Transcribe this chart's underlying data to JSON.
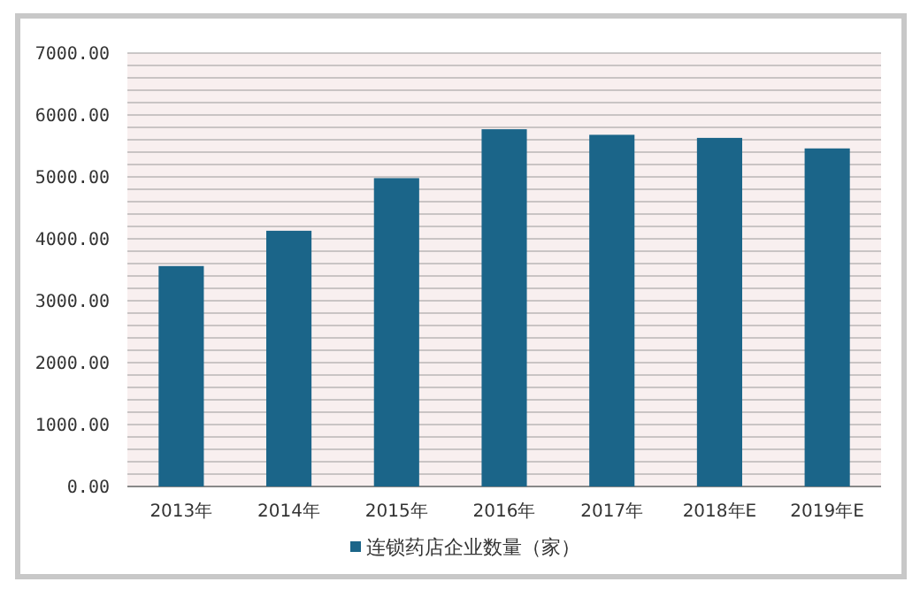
{
  "chart_data": {
    "type": "bar",
    "categories": [
      "2013年",
      "2014年",
      "2015年",
      "2016年",
      "2017年",
      "2018年E",
      "2019年E"
    ],
    "series": [
      {
        "name": "连锁药店企业数量（家）",
        "color": "#1b6589",
        "values": [
          3560,
          4130,
          4980,
          5770,
          5680,
          5630,
          5460
        ]
      }
    ],
    "ylim": [
      0,
      7000
    ],
    "yticks": [
      {
        "value": 0,
        "label": "0.00"
      },
      {
        "value": 200,
        "label": null
      },
      {
        "value": 400,
        "label": null
      },
      {
        "value": 600,
        "label": null
      },
      {
        "value": 800,
        "label": null
      },
      {
        "value": 1000,
        "label": "1000.00"
      },
      {
        "value": 1200,
        "label": null
      },
      {
        "value": 1400,
        "label": null
      },
      {
        "value": 1600,
        "label": null
      },
      {
        "value": 1800,
        "label": null
      },
      {
        "value": 2000,
        "label": "2000.00"
      },
      {
        "value": 2200,
        "label": null
      },
      {
        "value": 2400,
        "label": null
      },
      {
        "value": 2600,
        "label": null
      },
      {
        "value": 2800,
        "label": null
      },
      {
        "value": 3000,
        "label": "3000.00"
      },
      {
        "value": 3200,
        "label": null
      },
      {
        "value": 3400,
        "label": null
      },
      {
        "value": 3600,
        "label": null
      },
      {
        "value": 3800,
        "label": null
      },
      {
        "value": 4000,
        "label": "4000.00"
      },
      {
        "value": 4200,
        "label": null
      },
      {
        "value": 4400,
        "label": null
      },
      {
        "value": 4600,
        "label": null
      },
      {
        "value": 4800,
        "label": null
      },
      {
        "value": 5000,
        "label": "5000.00"
      },
      {
        "value": 5200,
        "label": null
      },
      {
        "value": 5400,
        "label": null
      },
      {
        "value": 5600,
        "label": null
      },
      {
        "value": 5800,
        "label": null
      },
      {
        "value": 6000,
        "label": "6000.00"
      },
      {
        "value": 6200,
        "label": null
      },
      {
        "value": 6400,
        "label": null
      },
      {
        "value": 6600,
        "label": null
      },
      {
        "value": 6800,
        "label": null
      },
      {
        "value": 7000,
        "label": "7000.00"
      }
    ],
    "grid": "y",
    "legend": "bottom"
  }
}
